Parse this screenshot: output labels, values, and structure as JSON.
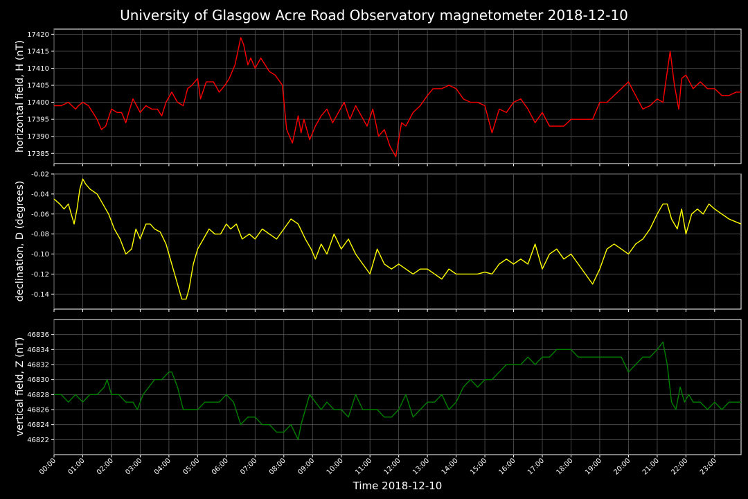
{
  "chart_data": [
    {
      "type": "line",
      "title": "University of Glasgow Acre Road Observatory magnetometer 2018-12-10",
      "xlabel": "",
      "ylabel": "horizontal field, H (nT)",
      "ylim": [
        17382,
        17421.5
      ],
      "yticks": [
        17385,
        17390,
        17395,
        17400,
        17405,
        17410,
        17415,
        17420
      ],
      "grid": true,
      "series": [
        {
          "color": "#ff0000",
          "x_hours": [
            0,
            0.25,
            0.5,
            0.75,
            0.85,
            1.0,
            1.2,
            1.5,
            1.65,
            1.8,
            2.0,
            2.2,
            2.35,
            2.5,
            2.6,
            2.75,
            3.0,
            3.2,
            3.4,
            3.6,
            3.75,
            3.9,
            4.1,
            4.3,
            4.5,
            4.65,
            4.8,
            5.0,
            5.1,
            5.3,
            5.55,
            5.75,
            5.95,
            6.1,
            6.3,
            6.5,
            6.6,
            6.75,
            6.85,
            7.0,
            7.2,
            7.5,
            7.7,
            7.95,
            8.1,
            8.3,
            8.5,
            8.6,
            8.7,
            8.9,
            9.1,
            9.3,
            9.5,
            9.7,
            9.9,
            10.1,
            10.3,
            10.5,
            10.7,
            10.9,
            11.1,
            11.3,
            11.5,
            11.7,
            11.9,
            12.1,
            12.25,
            12.5,
            12.75,
            13.0,
            13.2,
            13.5,
            13.75,
            14.0,
            14.25,
            14.5,
            14.75,
            15.0,
            15.25,
            15.5,
            15.75,
            16.0,
            16.25,
            16.5,
            16.75,
            17.0,
            17.25,
            17.5,
            17.75,
            18.0,
            18.25,
            18.5,
            18.75,
            19.0,
            19.25,
            19.5,
            19.75,
            20.0,
            20.25,
            20.5,
            20.75,
            21.0,
            21.2,
            21.3,
            21.45,
            21.6,
            21.75,
            21.85,
            22.0,
            22.25,
            22.5,
            22.75,
            23.0,
            23.25,
            23.5,
            23.75,
            23.92
          ],
          "values": [
            17399,
            17399,
            17400,
            17398,
            17399,
            17400,
            17399,
            17395,
            17392,
            17393,
            17398,
            17397,
            17397,
            17394,
            17397,
            17401,
            17397,
            17399,
            17398,
            17398,
            17396,
            17400,
            17403,
            17400,
            17399,
            17404,
            17405,
            17407,
            17401,
            17406,
            17406,
            17403,
            17405,
            17407,
            17411,
            17419,
            17417,
            17411,
            17413,
            17410,
            17413,
            17409,
            17408,
            17405,
            17392,
            17388,
            17396,
            17391,
            17395,
            17389,
            17393,
            17396,
            17398,
            17394,
            17397,
            17400,
            17395,
            17399,
            17396,
            17393,
            17398,
            17390,
            17392,
            17387,
            17384,
            17394,
            17393,
            17397,
            17399,
            17402,
            17404,
            17404,
            17405,
            17404,
            17401,
            17400,
            17400,
            17399,
            17391,
            17398,
            17397,
            17400,
            17401,
            17398,
            17394,
            17397,
            17393,
            17393,
            17393,
            17395,
            17395,
            17395,
            17395,
            17400,
            17400,
            17402,
            17404,
            17406,
            17402,
            17398,
            17399,
            17401,
            17400,
            17406,
            17415,
            17405,
            17398,
            17407,
            17408,
            17404,
            17406,
            17404,
            17404,
            17402,
            17402,
            17403,
            17403
          ]
        }
      ]
    },
    {
      "type": "line",
      "xlabel": "",
      "ylabel": "declination, D (degrees)",
      "ylim": [
        -0.155,
        -0.02
      ],
      "yticks": [
        -0.14,
        -0.12,
        -0.1,
        -0.08,
        -0.06,
        -0.04,
        -0.02
      ],
      "grid": true,
      "series": [
        {
          "color": "#ffff00",
          "x_hours": [
            0,
            0.2,
            0.35,
            0.5,
            0.7,
            0.8,
            0.9,
            1.0,
            1.1,
            1.25,
            1.5,
            1.7,
            1.9,
            2.1,
            2.3,
            2.5,
            2.7,
            2.85,
            3.0,
            3.2,
            3.35,
            3.5,
            3.7,
            3.9,
            4.1,
            4.3,
            4.45,
            4.6,
            4.7,
            4.85,
            5.0,
            5.2,
            5.4,
            5.6,
            5.8,
            6.0,
            6.15,
            6.35,
            6.55,
            6.8,
            7.0,
            7.25,
            7.5,
            7.75,
            8.0,
            8.25,
            8.5,
            8.75,
            8.95,
            9.1,
            9.3,
            9.5,
            9.75,
            10.0,
            10.25,
            10.5,
            10.75,
            11.0,
            11.25,
            11.5,
            11.75,
            12.0,
            12.25,
            12.5,
            12.75,
            13.0,
            13.25,
            13.5,
            13.75,
            14.0,
            14.25,
            14.5,
            14.75,
            15.0,
            15.25,
            15.5,
            15.75,
            16.0,
            16.25,
            16.5,
            16.75,
            17.0,
            17.25,
            17.5,
            17.75,
            18.0,
            18.25,
            18.5,
            18.75,
            19.0,
            19.25,
            19.5,
            19.75,
            20.0,
            20.25,
            20.5,
            20.75,
            21.0,
            21.2,
            21.35,
            21.5,
            21.7,
            21.85,
            22.0,
            22.2,
            22.4,
            22.6,
            22.8,
            23.0,
            23.25,
            23.5,
            23.75,
            23.92
          ],
          "values": [
            -0.045,
            -0.05,
            -0.055,
            -0.05,
            -0.07,
            -0.055,
            -0.035,
            -0.025,
            -0.03,
            -0.035,
            -0.04,
            -0.05,
            -0.06,
            -0.075,
            -0.085,
            -0.1,
            -0.095,
            -0.075,
            -0.085,
            -0.07,
            -0.07,
            -0.075,
            -0.078,
            -0.09,
            -0.11,
            -0.13,
            -0.145,
            -0.145,
            -0.135,
            -0.11,
            -0.095,
            -0.085,
            -0.075,
            -0.08,
            -0.08,
            -0.07,
            -0.075,
            -0.07,
            -0.085,
            -0.08,
            -0.085,
            -0.075,
            -0.08,
            -0.085,
            -0.075,
            -0.065,
            -0.07,
            -0.085,
            -0.095,
            -0.105,
            -0.09,
            -0.1,
            -0.08,
            -0.095,
            -0.085,
            -0.1,
            -0.11,
            -0.12,
            -0.095,
            -0.11,
            -0.115,
            -0.11,
            -0.115,
            -0.12,
            -0.115,
            -0.115,
            -0.12,
            -0.125,
            -0.115,
            -0.12,
            -0.12,
            -0.12,
            -0.12,
            -0.118,
            -0.12,
            -0.11,
            -0.105,
            -0.11,
            -0.105,
            -0.11,
            -0.09,
            -0.115,
            -0.1,
            -0.095,
            -0.105,
            -0.1,
            -0.11,
            -0.12,
            -0.13,
            -0.115,
            -0.095,
            -0.09,
            -0.095,
            -0.1,
            -0.09,
            -0.085,
            -0.075,
            -0.06,
            -0.05,
            -0.05,
            -0.065,
            -0.075,
            -0.055,
            -0.08,
            -0.06,
            -0.055,
            -0.06,
            -0.05,
            -0.055,
            -0.06,
            -0.065,
            -0.068,
            -0.07
          ]
        }
      ]
    },
    {
      "type": "line",
      "xlabel": "Time 2018-12-10",
      "ylabel": "vertical field, Z (nT)",
      "ylim": [
        46820.0,
        46838.0
      ],
      "yticks": [
        46822,
        46824,
        46826,
        46828,
        46830,
        46832,
        46834,
        46836
      ],
      "grid": true,
      "xticks": [
        "00:00",
        "01:00",
        "02:00",
        "03:00",
        "04:00",
        "05:00",
        "06:00",
        "07:00",
        "08:00",
        "09:00",
        "10:00",
        "11:00",
        "12:00",
        "13:00",
        "14:00",
        "15:00",
        "16:00",
        "17:00",
        "18:00",
        "19:00",
        "20:00",
        "21:00",
        "22:00",
        "23:00"
      ],
      "xlim_hours": [
        0,
        23.92
      ],
      "series": [
        {
          "color": "#008000",
          "x_hours": [
            0,
            0.25,
            0.5,
            0.75,
            1.0,
            1.25,
            1.5,
            1.75,
            1.85,
            2.0,
            2.25,
            2.5,
            2.75,
            2.9,
            3.1,
            3.3,
            3.5,
            3.75,
            4.0,
            4.1,
            4.3,
            4.5,
            4.75,
            5.0,
            5.25,
            5.5,
            5.75,
            6.0,
            6.25,
            6.5,
            6.75,
            7.0,
            7.25,
            7.5,
            7.75,
            8.0,
            8.25,
            8.5,
            8.6,
            8.75,
            8.9,
            9.1,
            9.3,
            9.5,
            9.75,
            10.0,
            10.25,
            10.5,
            10.75,
            11.0,
            11.25,
            11.5,
            11.75,
            12.0,
            12.25,
            12.5,
            12.75,
            13.0,
            13.25,
            13.5,
            13.75,
            14.0,
            14.25,
            14.5,
            14.75,
            15.0,
            15.25,
            15.5,
            15.75,
            16.0,
            16.25,
            16.5,
            16.75,
            17.0,
            17.25,
            17.5,
            17.75,
            18.0,
            18.25,
            18.5,
            18.75,
            19.0,
            19.25,
            19.5,
            19.75,
            20.0,
            20.25,
            20.5,
            20.75,
            21.0,
            21.2,
            21.35,
            21.5,
            21.65,
            21.8,
            21.95,
            22.1,
            22.25,
            22.5,
            22.75,
            23.0,
            23.25,
            23.5,
            23.75,
            23.92
          ],
          "values": [
            46828,
            46828,
            46827,
            46828,
            46827,
            46828,
            46828,
            46829,
            46830,
            46828,
            46828,
            46827,
            46827,
            46826,
            46828,
            46829,
            46830,
            46830,
            46831,
            46831,
            46829,
            46826,
            46826,
            46826,
            46827,
            46827,
            46827,
            46828,
            46827,
            46824,
            46825,
            46825,
            46824,
            46824,
            46823,
            46823,
            46824,
            46822,
            46824,
            46826,
            46828,
            46827,
            46826,
            46827,
            46826,
            46826,
            46825,
            46828,
            46826,
            46826,
            46826,
            46825,
            46825,
            46826,
            46828,
            46825,
            46826,
            46827,
            46827,
            46828,
            46826,
            46827,
            46829,
            46830,
            46829,
            46830,
            46830,
            46831,
            46832,
            46832,
            46832,
            46833,
            46832,
            46833,
            46833,
            46834,
            46834,
            46834,
            46833,
            46833,
            46833,
            46833,
            46833,
            46833,
            46833,
            46831,
            46832,
            46833,
            46833,
            46834,
            46835,
            46832,
            46827,
            46826,
            46829,
            46827,
            46828,
            46827,
            46827,
            46826,
            46827,
            46826,
            46827,
            46827,
            46827
          ]
        }
      ]
    }
  ]
}
